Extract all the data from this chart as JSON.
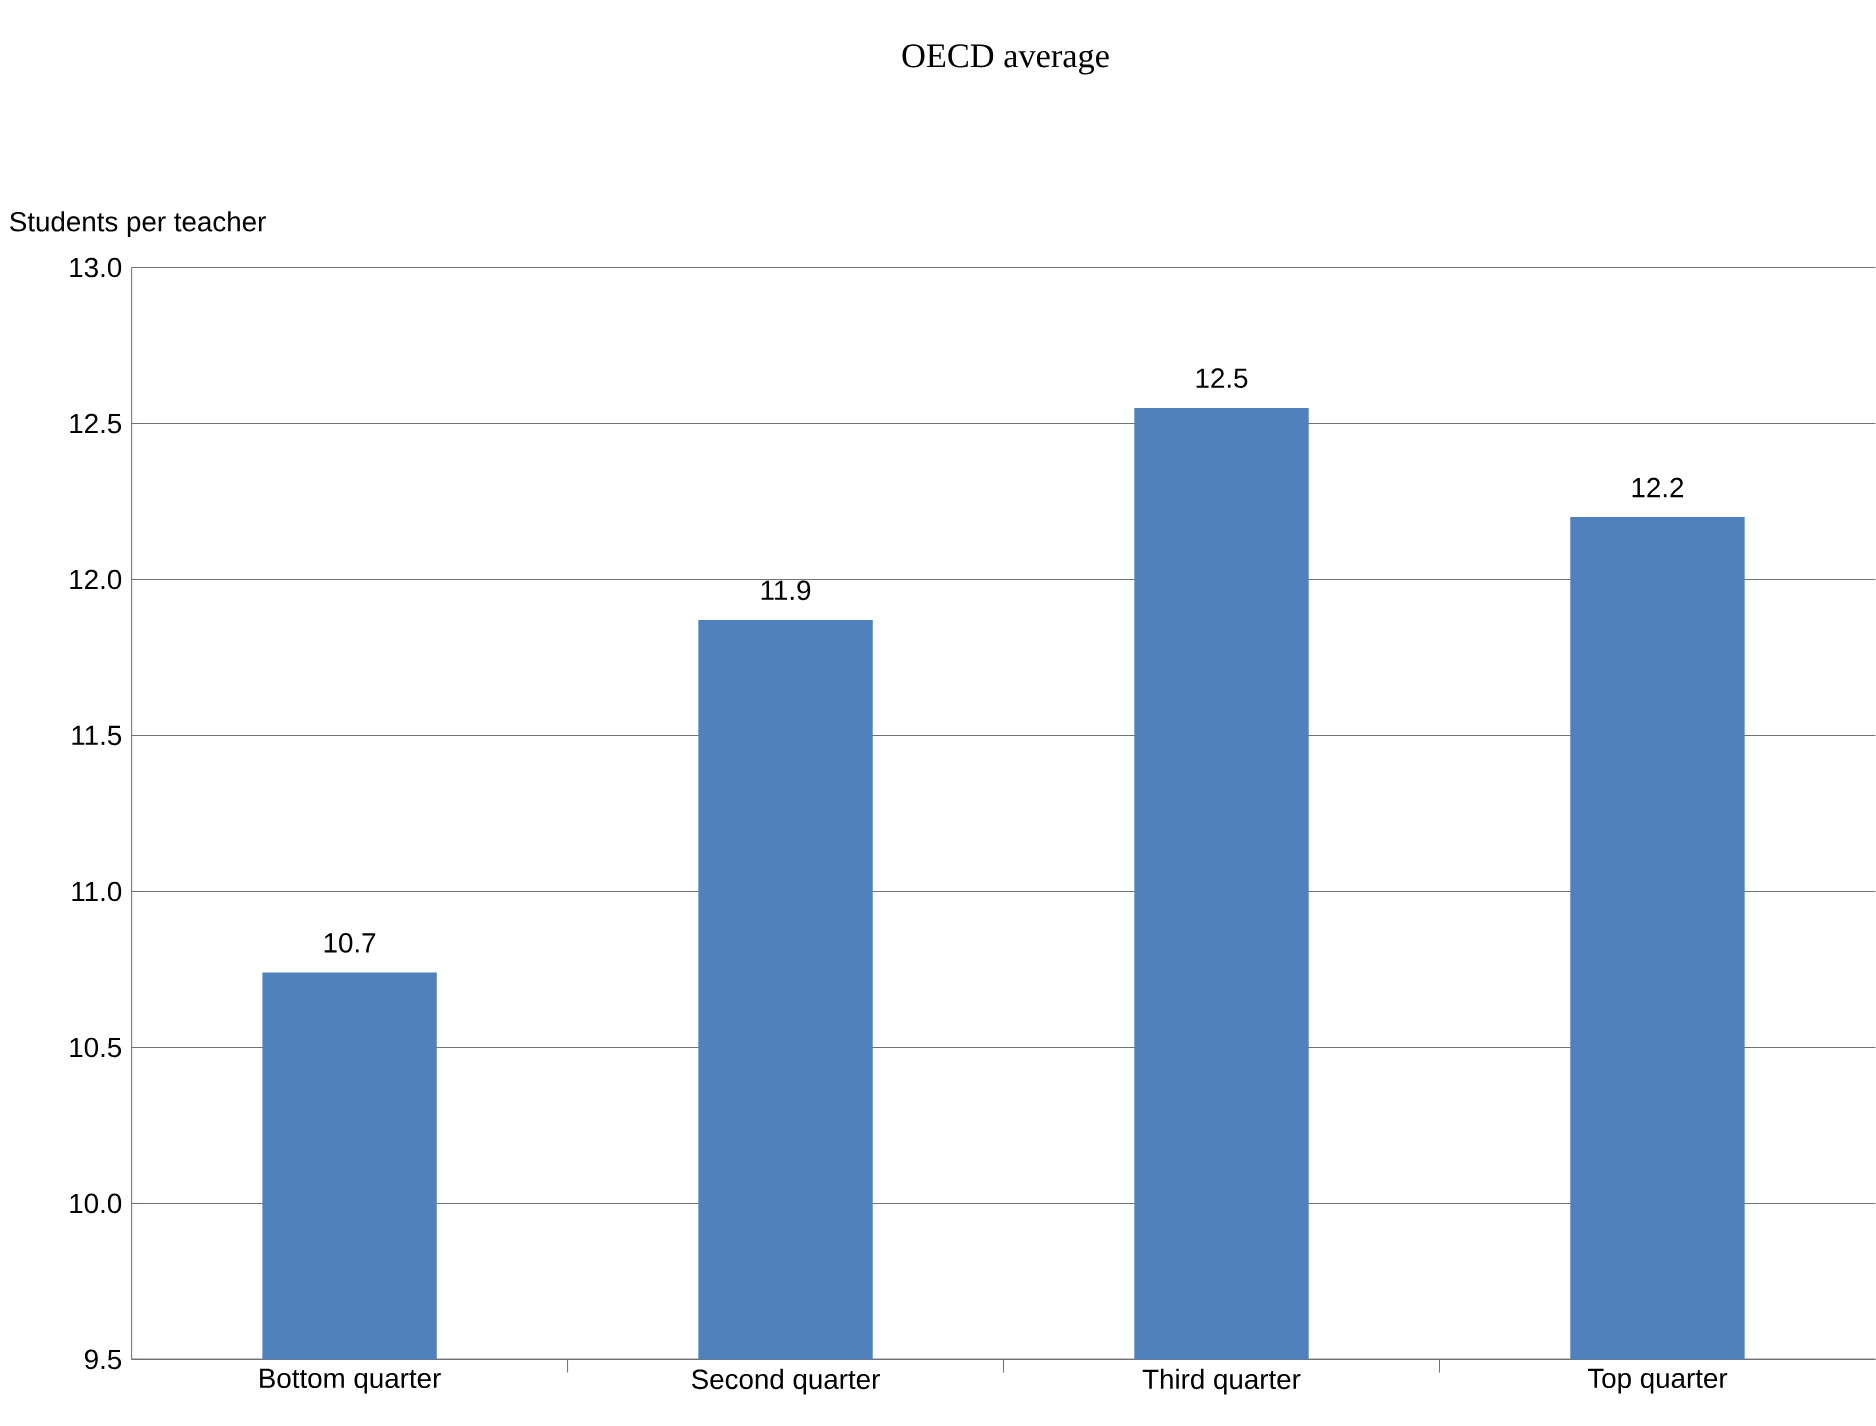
{
  "chart_data": {
    "type": "bar",
    "title": "OECD average",
    "ylabel": "Students per teacher",
    "categories": [
      "Bottom quarter",
      "Second quarter",
      "Third quarter",
      "Top quarter"
    ],
    "values": [
      10.74,
      11.87,
      12.55,
      12.2
    ],
    "value_labels": [
      "10.7",
      "11.9",
      "12.5",
      "12.2"
    ],
    "color": "#4f81bd",
    "ylim": [
      9.5,
      13.0
    ],
    "yticks": [
      {
        "value": 9.5,
        "label": "9.5"
      },
      {
        "value": 10,
        "label": "10.0"
      },
      {
        "value": 10.5,
        "label": "10.5"
      },
      {
        "value": 11,
        "label": "11.0"
      },
      {
        "value": 11.5,
        "label": "11.5"
      },
      {
        "value": 12,
        "label": "12.0"
      },
      {
        "value": 12.5,
        "label": "12.5"
      },
      {
        "value": 13,
        "label": "13.0"
      }
    ],
    "grid": "y"
  }
}
